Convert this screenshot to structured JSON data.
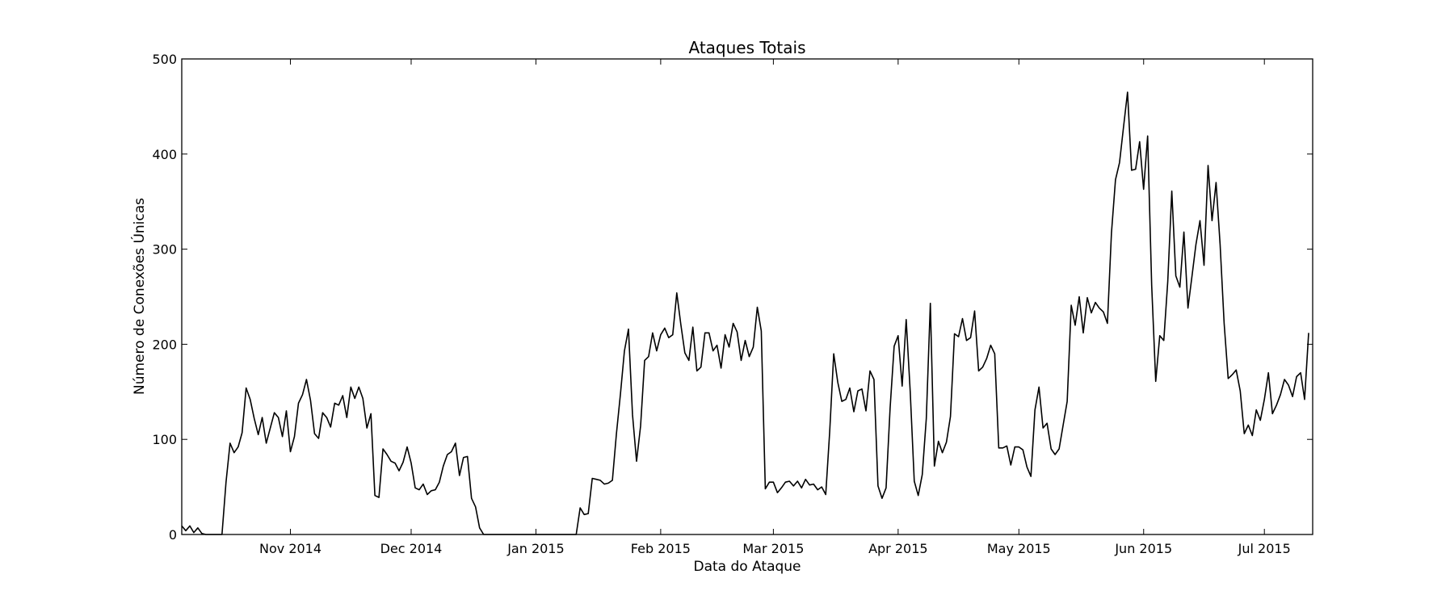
{
  "chart_data": {
    "type": "line",
    "title": "Ataques Totais",
    "xlabel": "Data do Ataque",
    "ylabel": "Número de Conexões Únicas",
    "ylim": [
      0,
      500
    ],
    "xlim": [
      "2014-10-05",
      "2015-07-13"
    ],
    "yticks": [
      0,
      100,
      200,
      300,
      400,
      500
    ],
    "xticks": [
      {
        "date": "2014-11-01",
        "label": "Nov 2014"
      },
      {
        "date": "2014-12-01",
        "label": "Dec 2014"
      },
      {
        "date": "2015-01-01",
        "label": "Jan 2015"
      },
      {
        "date": "2015-02-01",
        "label": "Feb 2015"
      },
      {
        "date": "2015-03-01",
        "label": "Mar 2015"
      },
      {
        "date": "2015-04-01",
        "label": "Apr 2015"
      },
      {
        "date": "2015-05-01",
        "label": "May 2015"
      },
      {
        "date": "2015-06-01",
        "label": "Jun 2015"
      },
      {
        "date": "2015-07-01",
        "label": "Jul 2015"
      }
    ],
    "grid": false,
    "line_color": "#000000",
    "series": [
      {
        "points": [
          [
            "2014-10-05",
            9
          ],
          [
            "2014-10-06",
            4
          ],
          [
            "2014-10-07",
            9
          ],
          [
            "2014-10-08",
            2
          ],
          [
            "2014-10-09",
            7
          ],
          [
            "2014-10-10",
            1
          ],
          [
            "2014-10-11",
            0
          ],
          [
            "2014-10-12",
            0
          ],
          [
            "2014-10-13",
            0
          ],
          [
            "2014-10-14",
            0
          ],
          [
            "2014-10-15",
            0
          ],
          [
            "2014-10-16",
            55
          ],
          [
            "2014-10-17",
            96
          ],
          [
            "2014-10-18",
            86
          ],
          [
            "2014-10-19",
            92
          ],
          [
            "2014-10-20",
            107
          ],
          [
            "2014-10-21",
            154
          ],
          [
            "2014-10-22",
            142
          ],
          [
            "2014-10-23",
            122
          ],
          [
            "2014-10-24",
            105
          ],
          [
            "2014-10-25",
            123
          ],
          [
            "2014-10-26",
            96
          ],
          [
            "2014-10-27",
            112
          ],
          [
            "2014-10-28",
            128
          ],
          [
            "2014-10-29",
            123
          ],
          [
            "2014-10-30",
            103
          ],
          [
            "2014-10-31",
            130
          ],
          [
            "2014-11-01",
            87
          ],
          [
            "2014-11-02",
            103
          ],
          [
            "2014-11-03",
            138
          ],
          [
            "2014-11-04",
            147
          ],
          [
            "2014-11-05",
            163
          ],
          [
            "2014-11-06",
            141
          ],
          [
            "2014-11-07",
            106
          ],
          [
            "2014-11-08",
            101
          ],
          [
            "2014-11-09",
            128
          ],
          [
            "2014-11-10",
            123
          ],
          [
            "2014-11-11",
            113
          ],
          [
            "2014-11-12",
            138
          ],
          [
            "2014-11-13",
            136
          ],
          [
            "2014-11-14",
            146
          ],
          [
            "2014-11-15",
            123
          ],
          [
            "2014-11-16",
            155
          ],
          [
            "2014-11-17",
            143
          ],
          [
            "2014-11-18",
            155
          ],
          [
            "2014-11-19",
            143
          ],
          [
            "2014-11-20",
            112
          ],
          [
            "2014-11-21",
            127
          ],
          [
            "2014-11-22",
            41
          ],
          [
            "2014-11-23",
            39
          ],
          [
            "2014-11-24",
            90
          ],
          [
            "2014-11-25",
            84
          ],
          [
            "2014-11-26",
            77
          ],
          [
            "2014-11-27",
            75
          ],
          [
            "2014-11-28",
            67
          ],
          [
            "2014-11-29",
            76
          ],
          [
            "2014-11-30",
            92
          ],
          [
            "2014-12-01",
            75
          ],
          [
            "2014-12-02",
            49
          ],
          [
            "2014-12-03",
            47
          ],
          [
            "2014-12-04",
            53
          ],
          [
            "2014-12-05",
            42
          ],
          [
            "2014-12-06",
            46
          ],
          [
            "2014-12-07",
            47
          ],
          [
            "2014-12-08",
            55
          ],
          [
            "2014-12-09",
            72
          ],
          [
            "2014-12-10",
            84
          ],
          [
            "2014-12-11",
            87
          ],
          [
            "2014-12-12",
            96
          ],
          [
            "2014-12-13",
            62
          ],
          [
            "2014-12-14",
            81
          ],
          [
            "2014-12-15",
            82
          ],
          [
            "2014-12-16",
            38
          ],
          [
            "2014-12-17",
            29
          ],
          [
            "2014-12-18",
            7
          ],
          [
            "2014-12-19",
            0
          ],
          [
            "2014-12-20",
            0
          ],
          [
            "2015-01-11",
            0
          ],
          [
            "2015-01-12",
            28
          ],
          [
            "2015-01-13",
            21
          ],
          [
            "2015-01-14",
            22
          ],
          [
            "2015-01-15",
            59
          ],
          [
            "2015-01-16",
            58
          ],
          [
            "2015-01-17",
            57
          ],
          [
            "2015-01-18",
            53
          ],
          [
            "2015-01-19",
            54
          ],
          [
            "2015-01-20",
            57
          ],
          [
            "2015-01-21",
            106
          ],
          [
            "2015-01-22",
            148
          ],
          [
            "2015-01-23",
            193
          ],
          [
            "2015-01-24",
            216
          ],
          [
            "2015-01-25",
            126
          ],
          [
            "2015-01-26",
            77
          ],
          [
            "2015-01-27",
            114
          ],
          [
            "2015-01-28",
            183
          ],
          [
            "2015-01-29",
            187
          ],
          [
            "2015-01-30",
            212
          ],
          [
            "2015-01-31",
            193
          ],
          [
            "2015-02-01",
            210
          ],
          [
            "2015-02-02",
            217
          ],
          [
            "2015-02-03",
            207
          ],
          [
            "2015-02-04",
            210
          ],
          [
            "2015-02-05",
            254
          ],
          [
            "2015-02-06",
            221
          ],
          [
            "2015-02-07",
            191
          ],
          [
            "2015-02-08",
            183
          ],
          [
            "2015-02-09",
            218
          ],
          [
            "2015-02-10",
            172
          ],
          [
            "2015-02-11",
            176
          ],
          [
            "2015-02-12",
            212
          ],
          [
            "2015-02-13",
            212
          ],
          [
            "2015-02-14",
            193
          ],
          [
            "2015-02-15",
            199
          ],
          [
            "2015-02-16",
            175
          ],
          [
            "2015-02-17",
            210
          ],
          [
            "2015-02-18",
            197
          ],
          [
            "2015-02-19",
            222
          ],
          [
            "2015-02-20",
            213
          ],
          [
            "2015-02-21",
            183
          ],
          [
            "2015-02-22",
            204
          ],
          [
            "2015-02-23",
            187
          ],
          [
            "2015-02-24",
            197
          ],
          [
            "2015-02-25",
            239
          ],
          [
            "2015-02-26",
            214
          ],
          [
            "2015-02-27",
            48
          ],
          [
            "2015-02-28",
            55
          ],
          [
            "2015-03-01",
            55
          ],
          [
            "2015-03-02",
            44
          ],
          [
            "2015-03-03",
            49
          ],
          [
            "2015-03-04",
            55
          ],
          [
            "2015-03-05",
            56
          ],
          [
            "2015-03-06",
            51
          ],
          [
            "2015-03-07",
            56
          ],
          [
            "2015-03-08",
            49
          ],
          [
            "2015-03-09",
            58
          ],
          [
            "2015-03-10",
            52
          ],
          [
            "2015-03-11",
            53
          ],
          [
            "2015-03-12",
            47
          ],
          [
            "2015-03-13",
            50
          ],
          [
            "2015-03-14",
            42
          ],
          [
            "2015-03-15",
            108
          ],
          [
            "2015-03-16",
            190
          ],
          [
            "2015-03-17",
            160
          ],
          [
            "2015-03-18",
            140
          ],
          [
            "2015-03-19",
            142
          ],
          [
            "2015-03-20",
            154
          ],
          [
            "2015-03-21",
            129
          ],
          [
            "2015-03-22",
            151
          ],
          [
            "2015-03-23",
            153
          ],
          [
            "2015-03-24",
            130
          ],
          [
            "2015-03-25",
            172
          ],
          [
            "2015-03-26",
            163
          ],
          [
            "2015-03-27",
            51
          ],
          [
            "2015-03-28",
            38
          ],
          [
            "2015-03-29",
            49
          ],
          [
            "2015-03-30",
            133
          ],
          [
            "2015-03-31",
            198
          ],
          [
            "2015-04-01",
            209
          ],
          [
            "2015-04-02",
            156
          ],
          [
            "2015-04-03",
            226
          ],
          [
            "2015-04-04",
            150
          ],
          [
            "2015-04-05",
            56
          ],
          [
            "2015-04-06",
            41
          ],
          [
            "2015-04-07",
            63
          ],
          [
            "2015-04-08",
            122
          ],
          [
            "2015-04-09",
            243
          ],
          [
            "2015-04-10",
            72
          ],
          [
            "2015-04-11",
            98
          ],
          [
            "2015-04-12",
            86
          ],
          [
            "2015-04-13",
            97
          ],
          [
            "2015-04-14",
            124
          ],
          [
            "2015-04-15",
            211
          ],
          [
            "2015-04-16",
            208
          ],
          [
            "2015-04-17",
            227
          ],
          [
            "2015-04-18",
            204
          ],
          [
            "2015-04-19",
            207
          ],
          [
            "2015-04-20",
            235
          ],
          [
            "2015-04-21",
            172
          ],
          [
            "2015-04-22",
            176
          ],
          [
            "2015-04-23",
            185
          ],
          [
            "2015-04-24",
            199
          ],
          [
            "2015-04-25",
            190
          ],
          [
            "2015-04-26",
            91
          ],
          [
            "2015-04-27",
            91
          ],
          [
            "2015-04-28",
            93
          ],
          [
            "2015-04-29",
            73
          ],
          [
            "2015-04-30",
            92
          ],
          [
            "2015-05-01",
            92
          ],
          [
            "2015-05-02",
            89
          ],
          [
            "2015-05-03",
            71
          ],
          [
            "2015-05-04",
            61
          ],
          [
            "2015-05-05",
            131
          ],
          [
            "2015-05-06",
            155
          ],
          [
            "2015-05-07",
            112
          ],
          [
            "2015-05-08",
            117
          ],
          [
            "2015-05-09",
            90
          ],
          [
            "2015-05-10",
            84
          ],
          [
            "2015-05-11",
            90
          ],
          [
            "2015-05-12",
            115
          ],
          [
            "2015-05-13",
            140
          ],
          [
            "2015-05-14",
            241
          ],
          [
            "2015-05-15",
            220
          ],
          [
            "2015-05-16",
            250
          ],
          [
            "2015-05-17",
            212
          ],
          [
            "2015-05-18",
            249
          ],
          [
            "2015-05-19",
            233
          ],
          [
            "2015-05-20",
            244
          ],
          [
            "2015-05-21",
            238
          ],
          [
            "2015-05-22",
            234
          ],
          [
            "2015-05-23",
            222
          ],
          [
            "2015-05-24",
            317
          ],
          [
            "2015-05-25",
            373
          ],
          [
            "2015-05-26",
            391
          ],
          [
            "2015-05-27",
            428
          ],
          [
            "2015-05-28",
            465
          ],
          [
            "2015-05-29",
            383
          ],
          [
            "2015-05-30",
            384
          ],
          [
            "2015-05-31",
            413
          ],
          [
            "2015-06-01",
            363
          ],
          [
            "2015-06-02",
            419
          ],
          [
            "2015-06-03",
            262
          ],
          [
            "2015-06-04",
            161
          ],
          [
            "2015-06-05",
            209
          ],
          [
            "2015-06-06",
            204
          ],
          [
            "2015-06-07",
            266
          ],
          [
            "2015-06-08",
            361
          ],
          [
            "2015-06-09",
            272
          ],
          [
            "2015-06-10",
            260
          ],
          [
            "2015-06-11",
            318
          ],
          [
            "2015-06-12",
            238
          ],
          [
            "2015-06-13",
            271
          ],
          [
            "2015-06-14",
            305
          ],
          [
            "2015-06-15",
            330
          ],
          [
            "2015-06-16",
            283
          ],
          [
            "2015-06-17",
            388
          ],
          [
            "2015-06-18",
            330
          ],
          [
            "2015-06-19",
            370
          ],
          [
            "2015-06-20",
            305
          ],
          [
            "2015-06-21",
            222
          ],
          [
            "2015-06-22",
            164
          ],
          [
            "2015-06-23",
            168
          ],
          [
            "2015-06-24",
            173
          ],
          [
            "2015-06-25",
            151
          ],
          [
            "2015-06-26",
            106
          ],
          [
            "2015-06-27",
            115
          ],
          [
            "2015-06-28",
            104
          ],
          [
            "2015-06-29",
            131
          ],
          [
            "2015-06-30",
            120
          ],
          [
            "2015-07-01",
            142
          ],
          [
            "2015-07-02",
            170
          ],
          [
            "2015-07-03",
            127
          ],
          [
            "2015-07-04",
            136
          ],
          [
            "2015-07-05",
            147
          ],
          [
            "2015-07-06",
            163
          ],
          [
            "2015-07-07",
            157
          ],
          [
            "2015-07-08",
            145
          ],
          [
            "2015-07-09",
            166
          ],
          [
            "2015-07-10",
            170
          ],
          [
            "2015-07-11",
            142
          ],
          [
            "2015-07-12",
            212
          ]
        ]
      }
    ]
  }
}
